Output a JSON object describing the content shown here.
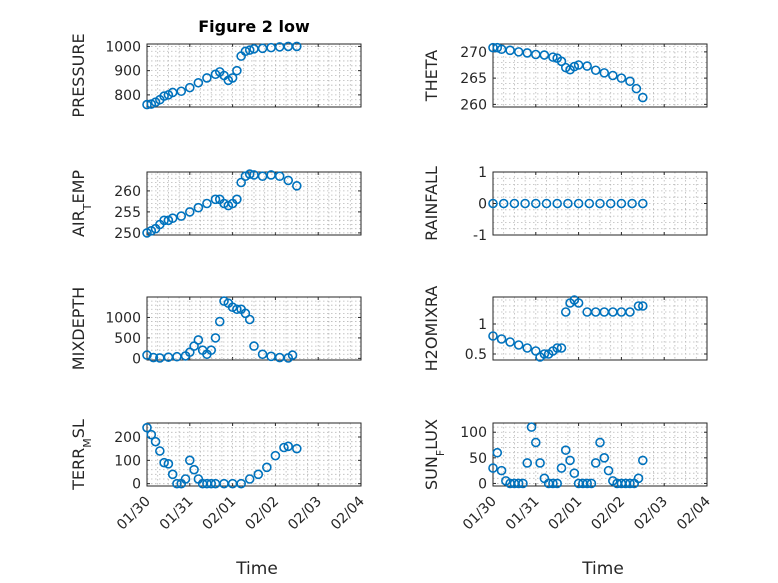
{
  "chart_data": [
    {
      "type": "scatter",
      "title": "Figure 2 low",
      "ylabel_main": "PRESSURE",
      "ylabel_sub": "",
      "xlabel": "",
      "ylim": [
        750,
        1010
      ],
      "yticks": [
        800,
        900,
        1000
      ],
      "yticklabels": [
        "800",
        "900",
        "1000"
      ],
      "xlim": [
        0,
        5
      ],
      "xticks": [
        0,
        1,
        2,
        3,
        4,
        5
      ],
      "xticklabels": [],
      "x": [
        0,
        0.1,
        0.2,
        0.3,
        0.4,
        0.5,
        0.6,
        0.8,
        1.0,
        1.2,
        1.4,
        1.6,
        1.7,
        1.8,
        1.9,
        2.0,
        2.1,
        2.2,
        2.3,
        2.4,
        2.5,
        2.7,
        2.9,
        3.1,
        3.3,
        3.5
      ],
      "y": [
        760,
        762,
        770,
        780,
        795,
        800,
        810,
        815,
        830,
        850,
        870,
        885,
        895,
        880,
        860,
        870,
        900,
        960,
        980,
        985,
        990,
        992,
        995,
        998,
        1000,
        1000
      ]
    },
    {
      "type": "scatter",
      "title": "",
      "ylabel_main": "THETA",
      "ylabel_sub": "",
      "xlabel": "",
      "ylim": [
        259.5,
        271.5
      ],
      "yticks": [
        260,
        265,
        270
      ],
      "yticklabels": [
        "260",
        "265",
        "270"
      ],
      "xlim": [
        0,
        5
      ],
      "xticks": [
        0,
        1,
        2,
        3,
        4,
        5
      ],
      "xticklabels": [],
      "x": [
        0,
        0.1,
        0.2,
        0.4,
        0.6,
        0.8,
        1.0,
        1.2,
        1.4,
        1.5,
        1.6,
        1.7,
        1.8,
        1.9,
        2.0,
        2.2,
        2.4,
        2.6,
        2.8,
        3.0,
        3.2,
        3.35,
        3.5
      ],
      "y": [
        270.8,
        270.8,
        270.5,
        270.3,
        270,
        269.8,
        269.5,
        269.4,
        269,
        268.8,
        268.2,
        267,
        266.6,
        267.2,
        267.5,
        267.3,
        266.5,
        266,
        265.5,
        265,
        264.4,
        263,
        261.3
      ]
    },
    {
      "type": "scatter",
      "title": "",
      "ylabel_main": "AIR",
      "ylabel_sub": "T",
      "ylabel_tail": "EMP",
      "xlabel": "",
      "ylim": [
        249.5,
        264.5
      ],
      "yticks": [
        250,
        255,
        260
      ],
      "yticklabels": [
        "250",
        "255",
        "260"
      ],
      "xlim": [
        0,
        5
      ],
      "xticks": [
        0,
        1,
        2,
        3,
        4,
        5
      ],
      "xticklabels": [],
      "x": [
        0,
        0.1,
        0.2,
        0.3,
        0.4,
        0.5,
        0.6,
        0.8,
        1.0,
        1.2,
        1.4,
        1.6,
        1.7,
        1.8,
        1.9,
        2.0,
        2.1,
        2.2,
        2.3,
        2.4,
        2.5,
        2.7,
        2.9,
        3.1,
        3.3,
        3.5
      ],
      "y": [
        250,
        250.5,
        251,
        252,
        253,
        253,
        253.5,
        254,
        255,
        256,
        257,
        258,
        258,
        257,
        256.5,
        257,
        258,
        262,
        263.5,
        264,
        263.8,
        263.5,
        263.8,
        263.5,
        262.5,
        261.2
      ]
    },
    {
      "type": "scatter",
      "title": "",
      "ylabel_main": "RAINFALL",
      "ylabel_sub": "",
      "xlabel": "",
      "ylim": [
        -1,
        1
      ],
      "yticks": [
        -1,
        0,
        1
      ],
      "yticklabels": [
        "-1",
        "0",
        "1"
      ],
      "xlim": [
        0,
        5
      ],
      "xticks": [
        0,
        1,
        2,
        3,
        4,
        5
      ],
      "xticklabels": [],
      "x": [
        0,
        0.25,
        0.5,
        0.75,
        1.0,
        1.25,
        1.5,
        1.75,
        2.0,
        2.25,
        2.5,
        2.75,
        3.0,
        3.25,
        3.5
      ],
      "y": [
        0,
        0,
        0,
        0,
        0,
        0,
        0,
        0,
        0,
        0,
        0,
        0,
        0,
        0,
        0
      ]
    },
    {
      "type": "scatter",
      "title": "",
      "ylabel_main": "MIXDEPTH",
      "ylabel_sub": "",
      "xlabel": "",
      "ylim": [
        -40,
        1500
      ],
      "yticks": [
        0,
        500,
        1000
      ],
      "yticklabels": [
        "0",
        "500",
        "1000"
      ],
      "xlim": [
        0,
        5
      ],
      "xticks": [
        0,
        1,
        2,
        3,
        4,
        5
      ],
      "xticklabels": [],
      "x": [
        0,
        0.15,
        0.3,
        0.5,
        0.7,
        0.9,
        1.0,
        1.1,
        1.2,
        1.3,
        1.4,
        1.5,
        1.6,
        1.7,
        1.8,
        1.9,
        2.0,
        2.1,
        2.2,
        2.3,
        2.4,
        2.5,
        2.7,
        2.9,
        3.1,
        3.3,
        3.4
      ],
      "y": [
        80,
        20,
        10,
        30,
        40,
        60,
        150,
        300,
        450,
        200,
        100,
        200,
        500,
        900,
        1400,
        1350,
        1250,
        1200,
        1200,
        1100,
        950,
        300,
        100,
        50,
        20,
        10,
        80
      ]
    },
    {
      "type": "scatter",
      "title": "",
      "ylabel_main": "H2OMIXRA",
      "ylabel_sub": "",
      "xlabel": "",
      "ylim": [
        0.4,
        1.45
      ],
      "yticks": [
        0.5,
        1
      ],
      "yticklabels": [
        "0.5",
        "1"
      ],
      "xlim": [
        0,
        5
      ],
      "xticks": [
        0,
        1,
        2,
        3,
        4,
        5
      ],
      "xticklabels": [],
      "x": [
        0,
        0.2,
        0.4,
        0.6,
        0.8,
        1.0,
        1.1,
        1.2,
        1.3,
        1.4,
        1.5,
        1.6,
        1.7,
        1.8,
        1.9,
        2.0,
        2.2,
        2.4,
        2.6,
        2.8,
        3.0,
        3.2,
        3.4,
        3.5
      ],
      "y": [
        0.8,
        0.75,
        0.7,
        0.65,
        0.6,
        0.55,
        0.45,
        0.5,
        0.5,
        0.55,
        0.6,
        0.6,
        1.2,
        1.35,
        1.4,
        1.35,
        1.2,
        1.2,
        1.2,
        1.2,
        1.2,
        1.2,
        1.3,
        1.3
      ]
    },
    {
      "type": "scatter",
      "title": "",
      "ylabel_main": "TERR",
      "ylabel_sub": "M",
      "ylabel_tail": "SL",
      "xlabel": "Time",
      "ylim": [
        -10,
        260
      ],
      "yticks": [
        0,
        100,
        200
      ],
      "yticklabels": [
        "0",
        "100",
        "200"
      ],
      "xlim": [
        0,
        5
      ],
      "xticks": [
        0,
        1,
        2,
        3,
        4,
        5
      ],
      "xticklabels": [
        "01/30",
        "01/31",
        "02/01",
        "02/02",
        "02/03",
        "02/04"
      ],
      "x": [
        0,
        0.1,
        0.2,
        0.3,
        0.4,
        0.5,
        0.6,
        0.7,
        0.8,
        0.9,
        1.0,
        1.1,
        1.2,
        1.3,
        1.4,
        1.5,
        1.6,
        1.8,
        2.0,
        2.2,
        2.4,
        2.6,
        2.8,
        3.0,
        3.2,
        3.3,
        3.5
      ],
      "y": [
        240,
        210,
        180,
        140,
        90,
        85,
        40,
        0,
        0,
        20,
        100,
        60,
        20,
        0,
        0,
        0,
        0,
        0,
        0,
        0,
        20,
        40,
        70,
        120,
        155,
        160,
        150
      ]
    },
    {
      "type": "scatter",
      "title": "",
      "ylabel_main": "SUN",
      "ylabel_sub": "F",
      "ylabel_tail": "LUX",
      "xlabel": "Time",
      "ylim": [
        -5,
        118
      ],
      "yticks": [
        0,
        50,
        100
      ],
      "yticklabels": [
        "0",
        "50",
        "100"
      ],
      "xlim": [
        0,
        5
      ],
      "xticks": [
        0,
        1,
        2,
        3,
        4,
        5
      ],
      "xticklabels": [
        "01/30",
        "01/31",
        "02/01",
        "02/02",
        "02/03",
        "02/04"
      ],
      "x": [
        0,
        0.1,
        0.2,
        0.3,
        0.4,
        0.5,
        0.6,
        0.7,
        0.8,
        0.9,
        1.0,
        1.1,
        1.2,
        1.3,
        1.4,
        1.5,
        1.6,
        1.7,
        1.8,
        1.9,
        2.0,
        2.1,
        2.2,
        2.3,
        2.4,
        2.5,
        2.6,
        2.7,
        2.8,
        2.9,
        3.0,
        3.1,
        3.2,
        3.3,
        3.4,
        3.5
      ],
      "y": [
        30,
        60,
        25,
        5,
        0,
        0,
        0,
        0,
        40,
        110,
        80,
        40,
        10,
        0,
        0,
        0,
        30,
        65,
        45,
        20,
        0,
        0,
        0,
        0,
        40,
        80,
        50,
        25,
        5,
        0,
        0,
        0,
        0,
        0,
        10,
        45
      ]
    }
  ],
  "colors": {
    "marker": "#0072BD",
    "axis": "#262626"
  }
}
